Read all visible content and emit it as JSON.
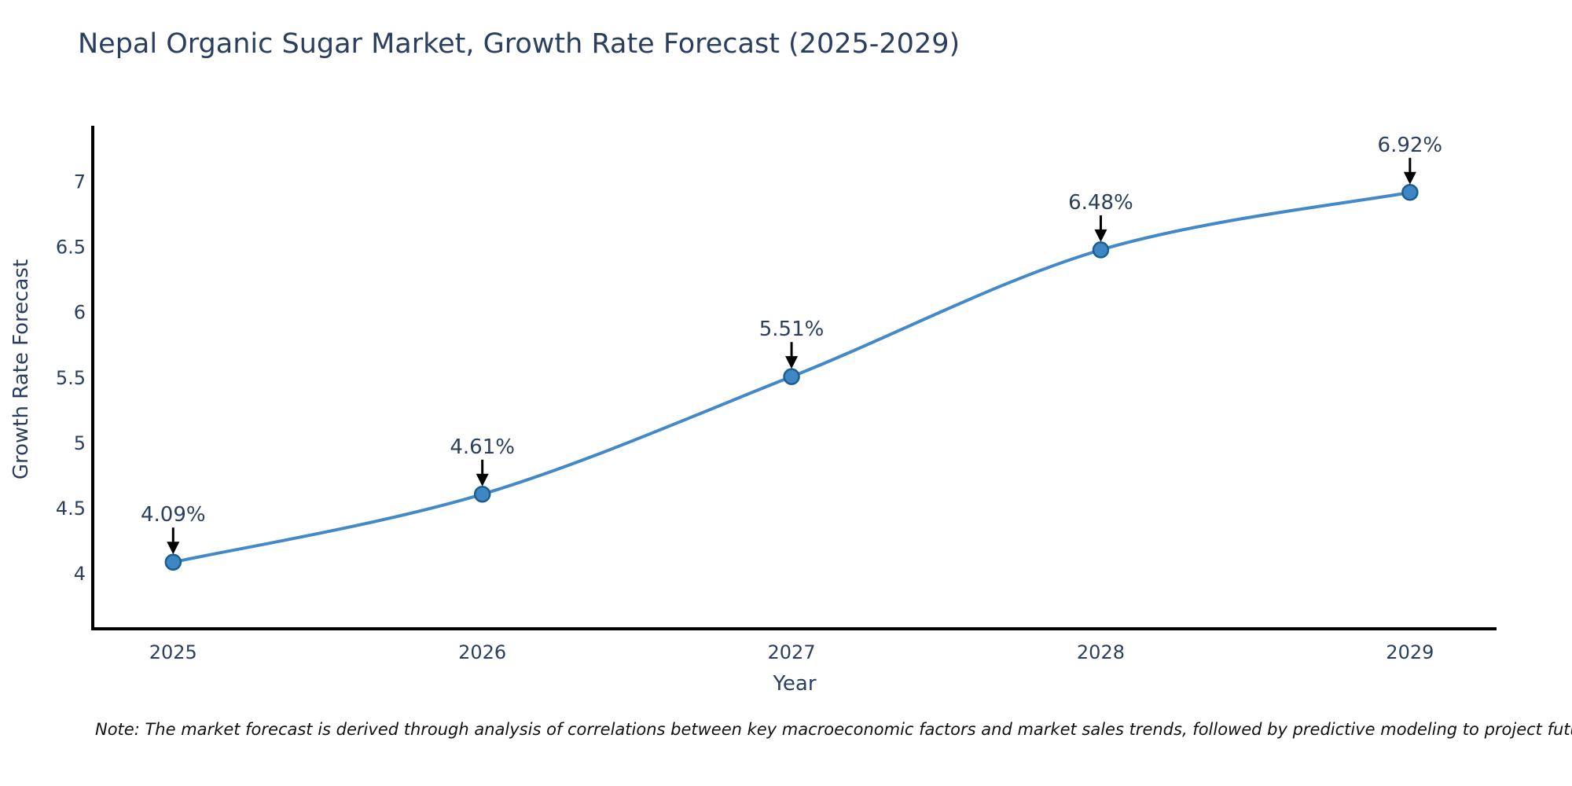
{
  "note": "Note: The market forecast is derived through analysis of correlations between key macroeconomic factors and market sales trends, followed by predictive modeling to project future sales",
  "chart_data": {
    "type": "line",
    "title": "Nepal Organic Sugar Market, Growth Rate Forecast (2025-2029)",
    "xlabel": "Year",
    "ylabel": "Growth Rate Forecast",
    "x": [
      2025,
      2026,
      2027,
      2028,
      2029
    ],
    "y": [
      4.09,
      4.61,
      5.51,
      6.48,
      6.92
    ],
    "point_labels": [
      "4.09%",
      "4.61%",
      "5.51%",
      "6.48%",
      "6.92%"
    ],
    "xtick_labels": [
      "2025",
      "2026",
      "2027",
      "2028",
      "2029"
    ],
    "ytick_values": [
      4,
      4.5,
      5,
      5.5,
      6,
      6.5,
      7
    ],
    "ytick_labels": [
      "4",
      "4.5",
      "5",
      "5.5",
      "6",
      "6.5",
      "7"
    ],
    "xlim": [
      2024.74,
      2029.28
    ],
    "ylim": [
      3.58,
      7.43
    ],
    "line_shape": "spline",
    "grid": false,
    "legend": "none",
    "annotation_style": "down-arrow-to-point",
    "colors": {
      "line": "#4389c8",
      "marker_fill": "#3f87c4",
      "marker_border": "#1c5e8f",
      "axis_line": "#000000",
      "text": "#2a3f5f",
      "arrow": "#000000",
      "note_text": "#111111"
    }
  }
}
